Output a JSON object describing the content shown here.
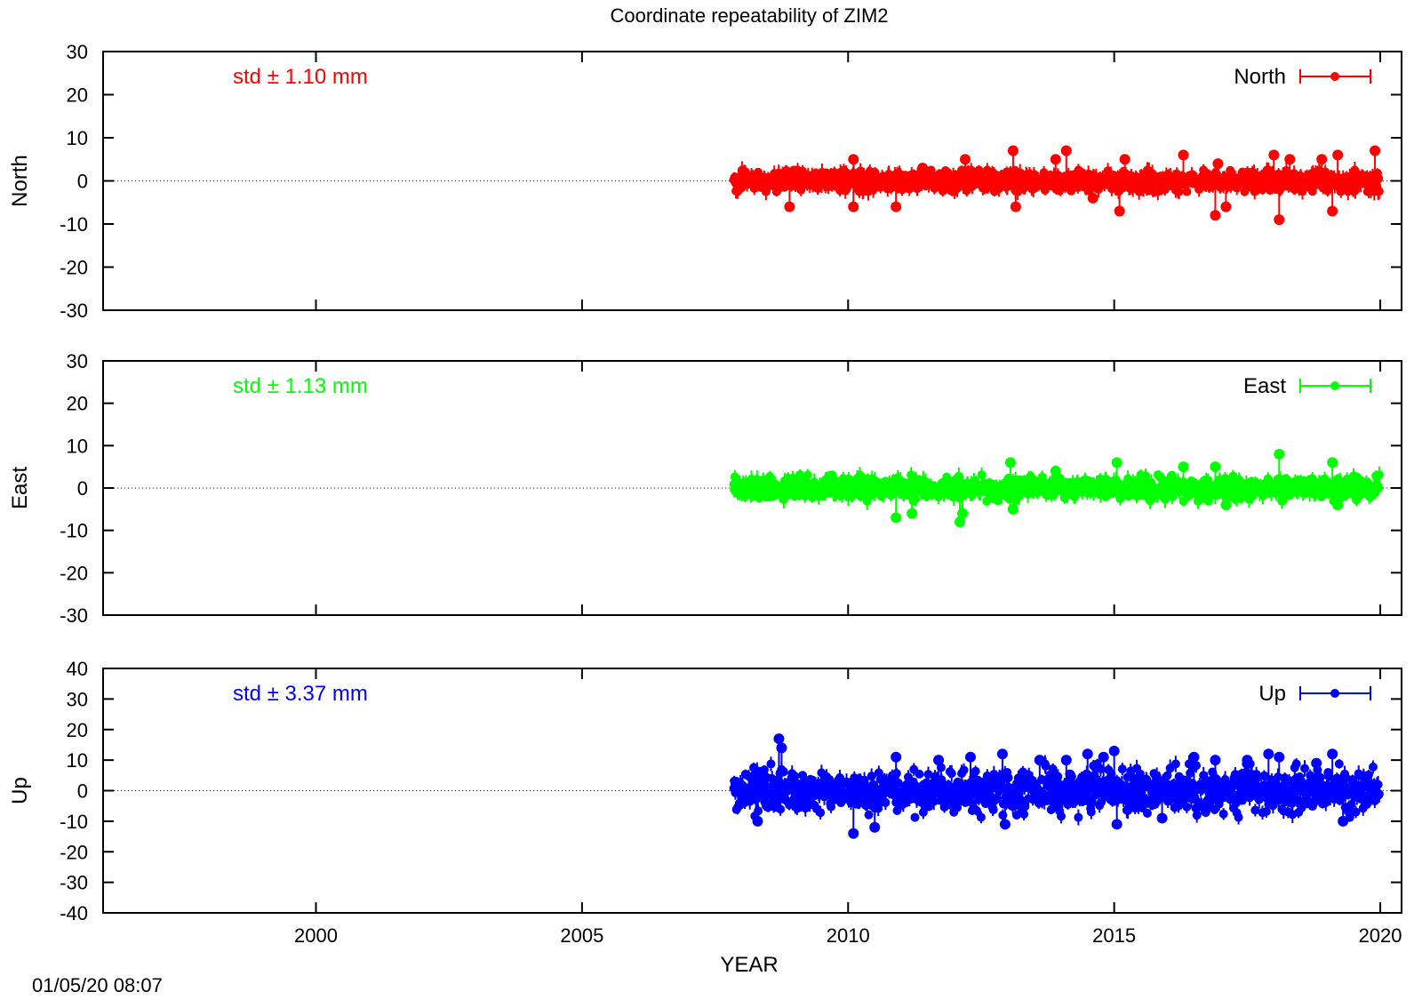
{
  "chart_data": {
    "type": "scatter",
    "title": "Coordinate repeatability of ZIM2",
    "xlabel": "YEAR",
    "timestamp": "01/05/20 08:07",
    "xlim": [
      1996,
      2020.4
    ],
    "xticks": [
      2000,
      2005,
      2010,
      2015,
      2020
    ],
    "xtick_labels": [
      "2000",
      "2005",
      "2010",
      "2015",
      "2020"
    ],
    "panels": [
      {
        "id": "north",
        "ylabel": "North",
        "legend": "North",
        "std_label": "std ± 1.10 mm",
        "color": "#ff0000",
        "ylim": [
          -30,
          30
        ],
        "yticks": [
          30,
          20,
          10,
          0,
          -10,
          -20,
          -30
        ],
        "ytick_labels": [
          "30",
          "20",
          "10",
          "0",
          "-10",
          "-20",
          "-30"
        ],
        "series": {
          "name": "North",
          "x_start": 2007.85,
          "x_end": 2019.98,
          "spread": 1.1,
          "band": [
            -2.0,
            2.0
          ],
          "outliers": [
            [
              2008.9,
              -6
            ],
            [
              2010.1,
              5
            ],
            [
              2010.1,
              -6
            ],
            [
              2010.9,
              -6
            ],
            [
              2011.4,
              3
            ],
            [
              2012.2,
              5
            ],
            [
              2013.1,
              7
            ],
            [
              2013.15,
              -6
            ],
            [
              2013.9,
              5
            ],
            [
              2014.1,
              7
            ],
            [
              2014.6,
              -4
            ],
            [
              2015.1,
              -7
            ],
            [
              2015.2,
              5
            ],
            [
              2016.3,
              6
            ],
            [
              2016.9,
              -8
            ],
            [
              2016.95,
              4
            ],
            [
              2017.1,
              -6
            ],
            [
              2018.0,
              6
            ],
            [
              2018.1,
              -9
            ],
            [
              2018.3,
              5
            ],
            [
              2018.9,
              5
            ],
            [
              2019.1,
              -7
            ],
            [
              2019.2,
              6
            ],
            [
              2019.9,
              7
            ]
          ]
        }
      },
      {
        "id": "east",
        "ylabel": "East",
        "legend": "East",
        "std_label": "std ± 1.13 mm",
        "color": "#00ff00",
        "ylim": [
          -30,
          30
        ],
        "yticks": [
          30,
          20,
          10,
          0,
          -10,
          -20,
          -30
        ],
        "ytick_labels": [
          "30",
          "20",
          "10",
          "0",
          "-10",
          "-20",
          "-30"
        ],
        "series": {
          "name": "East",
          "x_start": 2007.85,
          "x_end": 2019.98,
          "spread": 1.13,
          "band": [
            -2.5,
            2.5
          ],
          "outliers": [
            [
              2010.9,
              -7
            ],
            [
              2011.2,
              -6
            ],
            [
              2012.1,
              -8
            ],
            [
              2012.15,
              -6
            ],
            [
              2013.05,
              6
            ],
            [
              2013.1,
              -5
            ],
            [
              2013.9,
              4
            ],
            [
              2015.05,
              6
            ],
            [
              2016.3,
              5
            ],
            [
              2016.9,
              5
            ],
            [
              2017.1,
              -4
            ],
            [
              2018.1,
              8
            ],
            [
              2019.1,
              6
            ],
            [
              2019.2,
              -4
            ]
          ]
        }
      },
      {
        "id": "up",
        "ylabel": "Up",
        "legend": "Up",
        "std_label": "std ± 3.37 mm",
        "color": "#0000ff",
        "ylim": [
          -40,
          40
        ],
        "yticks": [
          40,
          30,
          20,
          10,
          0,
          -10,
          -20,
          -30,
          -40
        ],
        "ytick_labels": [
          "40",
          "30",
          "20",
          "10",
          "0",
          "-10",
          "-20",
          "-30",
          "-40"
        ],
        "series": {
          "name": "Up",
          "x_start": 2007.85,
          "x_end": 2019.98,
          "spread": 3.37,
          "band": [
            -7.0,
            7.0
          ],
          "outliers": [
            [
              2008.7,
              17
            ],
            [
              2008.75,
              14
            ],
            [
              2008.3,
              -10
            ],
            [
              2010.1,
              -14
            ],
            [
              2010.5,
              -12
            ],
            [
              2010.9,
              11
            ],
            [
              2011.7,
              10
            ],
            [
              2012.3,
              11
            ],
            [
              2012.9,
              12
            ],
            [
              2012.95,
              -11
            ],
            [
              2013.6,
              10
            ],
            [
              2014.1,
              10
            ],
            [
              2014.5,
              12
            ],
            [
              2014.8,
              11
            ],
            [
              2015.0,
              13
            ],
            [
              2015.05,
              -11
            ],
            [
              2015.9,
              -9
            ],
            [
              2016.5,
              11
            ],
            [
              2016.9,
              10
            ],
            [
              2017.5,
              10
            ],
            [
              2017.9,
              12
            ],
            [
              2018.1,
              11
            ],
            [
              2018.8,
              9
            ],
            [
              2019.1,
              12
            ],
            [
              2019.3,
              -10
            ]
          ]
        }
      }
    ]
  }
}
